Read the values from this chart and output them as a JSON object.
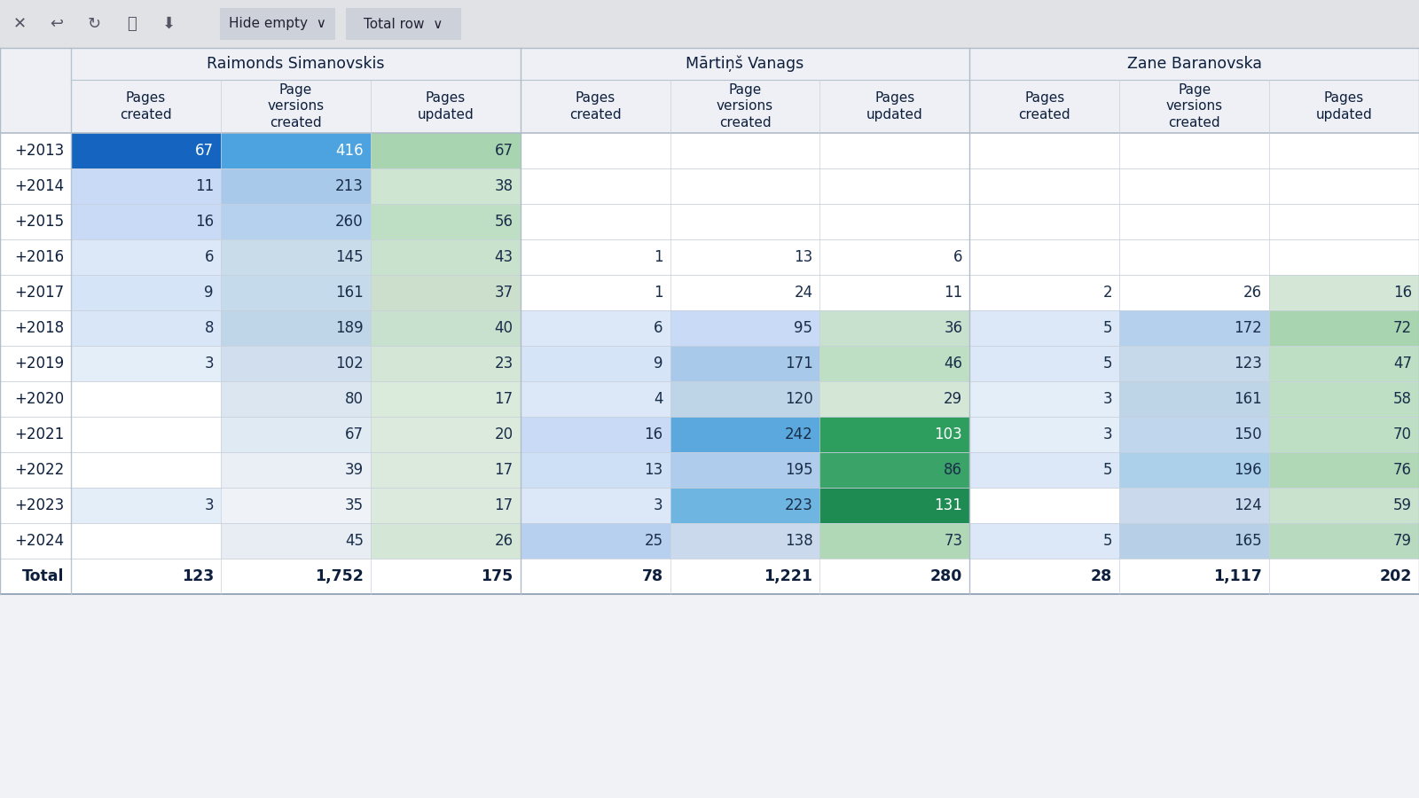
{
  "authors": [
    "Raimonds Simanovskis",
    "Mārtiņš Vanags",
    "Zane Baranovska"
  ],
  "col_headers": [
    "Pages\ncreated",
    "Page\nversions\ncreated",
    "Pages\nupdated"
  ],
  "years": [
    "+2013",
    "+2014",
    "+2015",
    "+2016",
    "+2017",
    "+2018",
    "+2019",
    "+2020",
    "+2021",
    "+2022",
    "+2023",
    "+2024",
    "Total"
  ],
  "data": [
    [
      [
        67,
        11,
        16,
        6,
        9,
        8,
        3,
        null,
        null,
        null,
        3,
        null,
        123
      ],
      [
        416,
        213,
        260,
        145,
        161,
        189,
        102,
        80,
        67,
        39,
        35,
        45,
        1752
      ],
      [
        67,
        38,
        56,
        43,
        37,
        40,
        23,
        17,
        20,
        17,
        17,
        26,
        175
      ]
    ],
    [
      [
        null,
        null,
        null,
        1,
        1,
        6,
        9,
        4,
        16,
        13,
        3,
        25,
        78
      ],
      [
        null,
        null,
        null,
        13,
        24,
        95,
        171,
        120,
        242,
        195,
        223,
        138,
        1221
      ],
      [
        null,
        null,
        null,
        6,
        11,
        36,
        46,
        29,
        103,
        86,
        131,
        73,
        280
      ]
    ],
    [
      [
        null,
        null,
        null,
        null,
        2,
        5,
        5,
        3,
        3,
        5,
        null,
        5,
        28
      ],
      [
        null,
        null,
        null,
        null,
        26,
        172,
        123,
        161,
        150,
        196,
        124,
        165,
        1117
      ],
      [
        null,
        null,
        null,
        null,
        16,
        72,
        47,
        58,
        70,
        76,
        59,
        79,
        202
      ]
    ]
  ],
  "cell_colors": [
    [
      [
        "#1565c0",
        "#c8daf5",
        "#c8daf5",
        "#dce8f8",
        "#d5e4f7",
        "#d8e6f7",
        "#e4eef9",
        null,
        null,
        null,
        "#e4eef9",
        null,
        null
      ],
      [
        "#4da3e0",
        "#a8c9ea",
        "#b5d1ed",
        "#c8dce9",
        "#c5daea",
        "#bed6e8",
        "#d0deee",
        "#dce6f0",
        "#e0eaf2",
        "#eaeff5",
        "#eff2f7",
        "#e8edf4",
        null
      ],
      [
        "#a8d5b0",
        "#cde5d1",
        "#bfdfc5",
        "#c8e2cd",
        "#ccdfcc",
        "#c8e0ce",
        "#d4e7d6",
        "#daeadb",
        "#dceadd",
        "#dceadd",
        "#dceadd",
        "#d4e7d6",
        null
      ]
    ],
    [
      [
        null,
        null,
        null,
        null,
        null,
        "#dce8f8",
        "#d5e4f7",
        "#dce8f8",
        "#c8daf5",
        "#cee0f6",
        "#dce8f8",
        "#b8d0f0",
        null
      ],
      [
        null,
        null,
        null,
        null,
        null,
        "#c8daf5",
        "#a8c9ea",
        "#bed5e8",
        "#5ba8df",
        "#b0ccec",
        "#6eb5e2",
        "#cbd9ec",
        null
      ],
      [
        null,
        null,
        null,
        null,
        null,
        "#c8e0ce",
        "#bfdfc5",
        "#d4e7d6",
        "#2e9e5e",
        "#3aa367",
        "#1e8c52",
        "#b0d8b7",
        null
      ]
    ],
    [
      [
        null,
        null,
        null,
        null,
        null,
        "#dce8f8",
        "#dce8f8",
        "#e4eef9",
        "#e4eef9",
        "#dce8f8",
        null,
        "#dce8f8",
        null
      ],
      [
        null,
        null,
        null,
        null,
        null,
        "#b5d0ec",
        "#c5d9ea",
        "#bed5e8",
        "#c0d6ec",
        "#add0ea",
        "#cbd9ec",
        "#b8cfe8",
        null
      ],
      [
        null,
        null,
        null,
        null,
        "#d4e7d6",
        "#a8d5b0",
        "#bfdfc5",
        "#bfdfc5",
        "#bfdfc5",
        "#b0d8b7",
        "#c8e2cd",
        "#b8dbbf",
        null
      ]
    ]
  ],
  "text_colors": [
    [
      [
        "#ffffff",
        "#1a2e4a",
        "#1a2e4a",
        "#1a2e4a",
        "#1a2e4a",
        "#1a2e4a",
        "#1a2e4a",
        null,
        null,
        null,
        "#1a2e4a",
        null,
        null
      ],
      [
        "#ffffff",
        "#1a2e4a",
        "#1a2e4a",
        "#1a2e4a",
        "#1a2e4a",
        "#1a2e4a",
        "#1a2e4a",
        "#1a2e4a",
        "#1a2e4a",
        "#1a2e4a",
        "#1a2e4a",
        "#1a2e4a",
        null
      ],
      [
        "#1a2e4a",
        "#1a2e4a",
        "#1a2e4a",
        "#1a2e4a",
        "#1a2e4a",
        "#1a2e4a",
        "#1a2e4a",
        "#1a2e4a",
        "#1a2e4a",
        "#1a2e4a",
        "#1a2e4a",
        "#1a2e4a",
        null
      ]
    ],
    [
      [
        null,
        null,
        null,
        null,
        null,
        "#1a2e4a",
        "#1a2e4a",
        "#1a2e4a",
        "#1a2e4a",
        "#1a2e4a",
        "#1a2e4a",
        "#1a2e4a",
        null
      ],
      [
        null,
        null,
        null,
        null,
        null,
        "#1a2e4a",
        "#1a2e4a",
        "#1a2e4a",
        "#1a2e4a",
        "#1a2e4a",
        "#1a2e4a",
        "#1a2e4a",
        null
      ],
      [
        null,
        null,
        null,
        null,
        null,
        "#1a2e4a",
        "#1a2e4a",
        "#1a2e4a",
        "#ffffff",
        "#1a2e4a",
        "#ffffff",
        "#1a2e4a",
        null
      ]
    ],
    [
      [
        null,
        null,
        null,
        null,
        null,
        "#1a2e4a",
        "#1a2e4a",
        "#1a2e4a",
        "#1a2e4a",
        "#1a2e4a",
        null,
        "#1a2e4a",
        null
      ],
      [
        null,
        null,
        null,
        null,
        null,
        "#1a2e4a",
        "#1a2e4a",
        "#1a2e4a",
        "#1a2e4a",
        "#1a2e4a",
        "#1a2e4a",
        "#1a2e4a",
        null
      ],
      [
        null,
        null,
        null,
        null,
        "#1a2e4a",
        "#1a2e4a",
        "#1a2e4a",
        "#1a2e4a",
        "#1a2e4a",
        "#1a2e4a",
        "#1a2e4a",
        "#1a2e4a",
        null
      ]
    ]
  ],
  "bg_color": "#f0f2f5",
  "toolbar_bg": "#e0e2e6",
  "header_bg": "#eef0f5",
  "total_text_color": "#0d1f3c",
  "year_label_color": "#0d1f3c"
}
